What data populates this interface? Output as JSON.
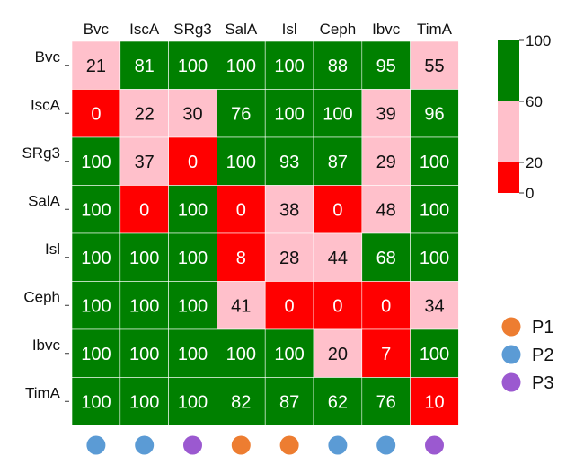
{
  "chart_data": {
    "type": "heatmap",
    "columns": [
      "Bvc",
      "IscA",
      "SRg3",
      "SalA",
      "Isl",
      "Ceph",
      "Ibvc",
      "TimA"
    ],
    "rows": [
      "Bvc",
      "IscA",
      "SRg3",
      "SalA",
      "Isl",
      "Ceph",
      "Ibvc",
      "TimA"
    ],
    "values": [
      [
        21,
        81,
        100,
        100,
        100,
        88,
        95,
        55
      ],
      [
        0,
        22,
        30,
        76,
        100,
        100,
        39,
        96
      ],
      [
        100,
        37,
        0,
        100,
        93,
        87,
        29,
        100
      ],
      [
        100,
        0,
        100,
        0,
        38,
        0,
        48,
        100
      ],
      [
        100,
        100,
        100,
        8,
        28,
        44,
        68,
        100
      ],
      [
        100,
        100,
        100,
        41,
        0,
        0,
        0,
        34
      ],
      [
        100,
        100,
        100,
        100,
        100,
        20,
        7,
        100
      ],
      [
        100,
        100,
        100,
        82,
        87,
        62,
        76,
        10
      ]
    ],
    "colorbar": {
      "ticks": [
        "100",
        "60",
        "20",
        "0"
      ],
      "bins": [
        {
          "min": 0,
          "max": 20,
          "color": "#ff0000"
        },
        {
          "min": 20,
          "max": 60,
          "color": "#ffc0cb"
        },
        {
          "min": 60,
          "max": 100,
          "color": "#008000"
        }
      ]
    },
    "column_groups": [
      "P2",
      "P2",
      "P3",
      "P1",
      "P1",
      "P2",
      "P2",
      "P3"
    ],
    "legend": [
      {
        "name": "P1",
        "color": "#ed7d31"
      },
      {
        "name": "P2",
        "color": "#5b9bd5"
      },
      {
        "name": "P3",
        "color": "#9b59d0"
      }
    ]
  }
}
